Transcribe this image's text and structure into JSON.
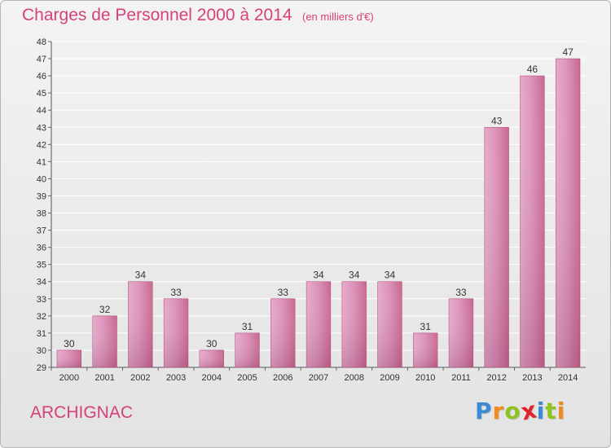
{
  "chart_data": {
    "type": "bar",
    "title": "Charges de Personnel 2000 à 2014",
    "subtitle": "(en milliers d'€)",
    "categories": [
      "2000",
      "2001",
      "2002",
      "2003",
      "2004",
      "2005",
      "2006",
      "2007",
      "2008",
      "2009",
      "2010",
      "2011",
      "2012",
      "2013",
      "2014"
    ],
    "values": [
      30,
      32,
      34,
      33,
      30,
      31,
      33,
      34,
      34,
      34,
      31,
      33,
      43,
      46,
      47
    ],
    "ylim": [
      29,
      48
    ],
    "yticks": [
      29,
      30,
      31,
      32,
      33,
      34,
      35,
      36,
      37,
      38,
      39,
      40,
      41,
      42,
      43,
      44,
      45,
      46,
      47,
      48
    ],
    "grid": true,
    "bar_color": "#c9678f",
    "xlabel": "",
    "ylabel": ""
  },
  "commune": "ARCHIGNAC",
  "logo": {
    "text": "Proxiti",
    "colors": [
      "#3a8bd6",
      "#f08a1c",
      "#8fc31f",
      "#e4212b",
      "#3a8bd6",
      "#8fc31f",
      "#f08a1c"
    ]
  }
}
